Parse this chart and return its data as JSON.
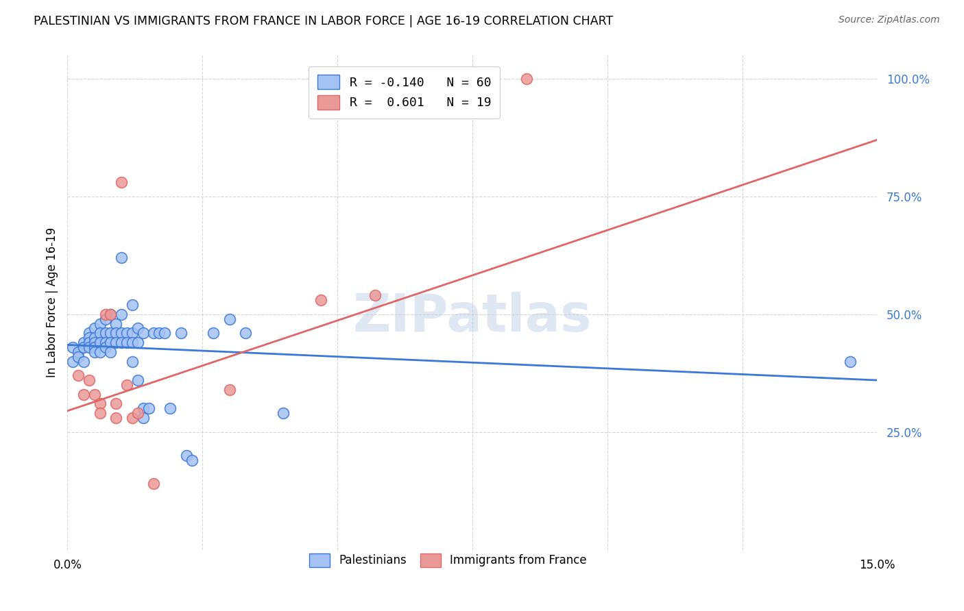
{
  "title": "PALESTINIAN VS IMMIGRANTS FROM FRANCE IN LABOR FORCE | AGE 16-19 CORRELATION CHART",
  "source": "Source: ZipAtlas.com",
  "ylabel": "In Labor Force | Age 16-19",
  "xlim": [
    0.0,
    0.15
  ],
  "ylim": [
    0.0,
    1.05
  ],
  "ytick_values": [
    0.0,
    0.25,
    0.5,
    0.75,
    1.0
  ],
  "legend_label1": "Palestinians",
  "legend_label2": "Immigrants from France",
  "R1": "-0.140",
  "N1": "60",
  "R2": "0.601",
  "N2": "19",
  "blue_color": "#a4c2f4",
  "pink_color": "#ea9999",
  "blue_line_color": "#3c78d8",
  "pink_line_color": "#e06666",
  "watermark": "ZIPatlas",
  "blue_points": [
    [
      0.001,
      0.4
    ],
    [
      0.001,
      0.43
    ],
    [
      0.002,
      0.42
    ],
    [
      0.002,
      0.41
    ],
    [
      0.003,
      0.44
    ],
    [
      0.003,
      0.43
    ],
    [
      0.003,
      0.4
    ],
    [
      0.004,
      0.46
    ],
    [
      0.004,
      0.45
    ],
    [
      0.004,
      0.44
    ],
    [
      0.004,
      0.43
    ],
    [
      0.005,
      0.47
    ],
    [
      0.005,
      0.45
    ],
    [
      0.005,
      0.44
    ],
    [
      0.005,
      0.43
    ],
    [
      0.005,
      0.42
    ],
    [
      0.006,
      0.48
    ],
    [
      0.006,
      0.46
    ],
    [
      0.006,
      0.44
    ],
    [
      0.006,
      0.42
    ],
    [
      0.007,
      0.49
    ],
    [
      0.007,
      0.46
    ],
    [
      0.007,
      0.44
    ],
    [
      0.007,
      0.43
    ],
    [
      0.008,
      0.5
    ],
    [
      0.008,
      0.46
    ],
    [
      0.008,
      0.44
    ],
    [
      0.008,
      0.42
    ],
    [
      0.009,
      0.48
    ],
    [
      0.009,
      0.46
    ],
    [
      0.009,
      0.44
    ],
    [
      0.01,
      0.62
    ],
    [
      0.01,
      0.5
    ],
    [
      0.01,
      0.46
    ],
    [
      0.01,
      0.44
    ],
    [
      0.011,
      0.46
    ],
    [
      0.011,
      0.44
    ],
    [
      0.012,
      0.52
    ],
    [
      0.012,
      0.46
    ],
    [
      0.012,
      0.44
    ],
    [
      0.012,
      0.4
    ],
    [
      0.013,
      0.47
    ],
    [
      0.013,
      0.44
    ],
    [
      0.013,
      0.36
    ],
    [
      0.014,
      0.46
    ],
    [
      0.014,
      0.3
    ],
    [
      0.014,
      0.28
    ],
    [
      0.015,
      0.3
    ],
    [
      0.016,
      0.46
    ],
    [
      0.017,
      0.46
    ],
    [
      0.018,
      0.46
    ],
    [
      0.019,
      0.3
    ],
    [
      0.021,
      0.46
    ],
    [
      0.022,
      0.2
    ],
    [
      0.023,
      0.19
    ],
    [
      0.027,
      0.46
    ],
    [
      0.03,
      0.49
    ],
    [
      0.033,
      0.46
    ],
    [
      0.04,
      0.29
    ],
    [
      0.145,
      0.4
    ]
  ],
  "pink_points": [
    [
      0.002,
      0.37
    ],
    [
      0.003,
      0.33
    ],
    [
      0.004,
      0.36
    ],
    [
      0.005,
      0.33
    ],
    [
      0.006,
      0.31
    ],
    [
      0.006,
      0.29
    ],
    [
      0.007,
      0.5
    ],
    [
      0.008,
      0.5
    ],
    [
      0.009,
      0.31
    ],
    [
      0.009,
      0.28
    ],
    [
      0.01,
      0.78
    ],
    [
      0.011,
      0.35
    ],
    [
      0.012,
      0.28
    ],
    [
      0.013,
      0.29
    ],
    [
      0.016,
      0.14
    ],
    [
      0.03,
      0.34
    ],
    [
      0.047,
      0.53
    ],
    [
      0.057,
      0.54
    ],
    [
      0.085,
      1.0
    ]
  ],
  "blue_trendline_x": [
    0.0,
    0.15
  ],
  "blue_trendline_y": [
    0.435,
    0.36
  ],
  "pink_trendline_x": [
    0.0,
    0.15
  ],
  "pink_trendline_y": [
    0.295,
    0.87
  ]
}
